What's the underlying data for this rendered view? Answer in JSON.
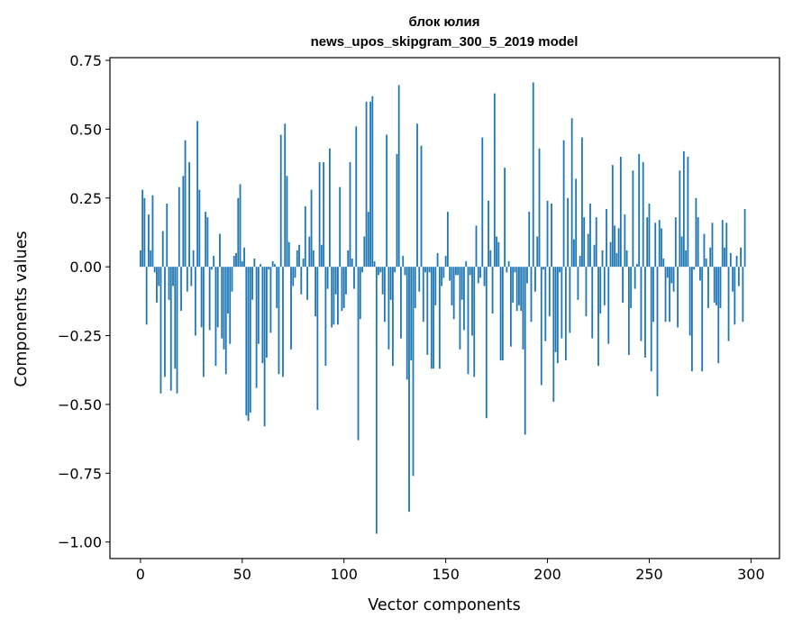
{
  "chart_data": {
    "type": "bar",
    "title": "блок юлия",
    "subtitle": "news_upos_skipgram_300_5_2019 model",
    "xlabel": "Vector components",
    "ylabel": "Components values",
    "xlim": [
      -15,
      314
    ],
    "ylim": [
      -1.06,
      0.76
    ],
    "xticks": [
      0,
      50,
      100,
      150,
      200,
      250,
      300
    ],
    "xtick_labels": [
      "0",
      "50",
      "100",
      "150",
      "200",
      "250",
      "300"
    ],
    "yticks": [
      0.75,
      0.5,
      0.25,
      0.0,
      -0.25,
      -0.5,
      -0.75,
      -1.0
    ],
    "ytick_labels": [
      "0.75",
      "0.50",
      "0.25",
      "0.00",
      "−0.25",
      "−0.50",
      "−0.75",
      "−1.00"
    ],
    "grid": false,
    "bar_color": "#1f77b4",
    "x_start": 0,
    "values": [
      0.06,
      0.28,
      0.25,
      -0.21,
      0.19,
      0.06,
      0.26,
      -0.02,
      -0.13,
      -0.07,
      -0.46,
      0.13,
      -0.4,
      0.23,
      -0.12,
      -0.45,
      -0.07,
      -0.37,
      -0.46,
      0.29,
      -0.16,
      0.33,
      0.46,
      -0.09,
      0.38,
      -0.07,
      0.06,
      -0.25,
      0.53,
      0.28,
      -0.22,
      -0.4,
      0.2,
      0.18,
      -0.23,
      -0.01,
      0.04,
      -0.36,
      -0.22,
      0.12,
      -0.26,
      -0.3,
      -0.39,
      -0.17,
      -0.28,
      -0.09,
      0.04,
      0.05,
      0.25,
      0.3,
      0.02,
      0.07,
      -0.54,
      -0.56,
      -0.53,
      -0.12,
      0.03,
      -0.44,
      -0.28,
      0.01,
      -0.35,
      -0.58,
      -0.33,
      -0.01,
      -0.24,
      0.02,
      0.01,
      -0.15,
      -0.39,
      0.48,
      -0.4,
      0.52,
      0.33,
      0.09,
      -0.3,
      -0.07,
      -0.04,
      0.06,
      0.08,
      -0.1,
      0.03,
      0.22,
      -0.12,
      0.11,
      0.28,
      0.06,
      -0.18,
      -0.52,
      0.38,
      0.08,
      0.38,
      -0.36,
      -0.08,
      0.43,
      -0.22,
      -0.21,
      -0.1,
      -0.21,
      0.29,
      -0.16,
      -0.15,
      -0.1,
      0.06,
      0.38,
      0.03,
      -0.08,
      0.51,
      -0.63,
      -0.19,
      -0.02,
      0.11,
      0.6,
      0.2,
      0.6,
      0.62,
      0.02,
      -0.97,
      -0.03,
      -0.02,
      -0.1,
      -0.2,
      0.48,
      -0.3,
      -0.12,
      -0.36,
      -0.02,
      0.41,
      0.66,
      -0.26,
      0.04,
      -0.03,
      -0.41,
      -0.89,
      -0.34,
      -0.76,
      -0.15,
      0.52,
      -0.09,
      0.44,
      -0.2,
      -0.02,
      -0.32,
      -0.02,
      -0.37,
      -0.37,
      -0.14,
      0.05,
      -0.37,
      -0.07,
      -0.04,
      0.04,
      0.2,
      -0.05,
      -0.14,
      -0.19,
      -0.03,
      -0.03,
      -0.3,
      -0.12,
      -0.23,
      0.02,
      -0.39,
      -0.03,
      -0.25,
      -0.4,
      0.15,
      -0.06,
      -0.04,
      0.47,
      -0.07,
      -0.55,
      0.24,
      0.06,
      -0.17,
      0.63,
      0.11,
      0.09,
      -0.34,
      -0.34,
      0.36,
      -0.02,
      0.02,
      -0.29,
      -0.13,
      -0.02,
      -0.16,
      -0.14,
      -0.16,
      -0.3,
      -0.61,
      -0.06,
      0.2,
      -0.2,
      0.67,
      -0.09,
      0.11,
      0.43,
      -0.43,
      -0.01,
      -0.27,
      0.24,
      -0.18,
      0.23,
      -0.49,
      -0.31,
      -0.35,
      -0.02,
      -0.26,
      0.46,
      -0.34,
      0.25,
      -0.24,
      0.54,
      0.1,
      0.32,
      -0.12,
      0.04,
      0.47,
      0.18,
      -0.18,
      0.12,
      0.23,
      -0.26,
      0.08,
      0.18,
      -0.36,
      -0.17,
      0.06,
      -0.14,
      0.21,
      -0.28,
      0.09,
      0.37,
      0.15,
      0.05,
      0.14,
      0.4,
      -0.13,
      0.19,
      0.06,
      -0.32,
      -0.15,
      0.35,
      -0.08,
      0.01,
      0.41,
      -0.27,
      0.38,
      -0.33,
      0.18,
      0.23,
      -0.38,
      -0.2,
      0.16,
      -0.47,
      0.17,
      0.14,
      0.03,
      -0.2,
      -0.04,
      -0.2,
      -0.06,
      -0.09,
      0.18,
      -0.22,
      0.35,
      0.11,
      0.42,
      0.06,
      0.4,
      -0.25,
      -0.38,
      -0.01,
      0.25,
      0.18,
      -0.05,
      -0.38,
      0.12,
      0.03,
      -0.15,
      0.07,
      0.16,
      -0.13,
      -0.14,
      -0.35,
      -0.15,
      0.17,
      0.07,
      0.16,
      -0.27,
      0.05,
      -0.09,
      -0.21,
      0.04,
      -0.07,
      0.07,
      -0.2,
      0.21
    ]
  }
}
